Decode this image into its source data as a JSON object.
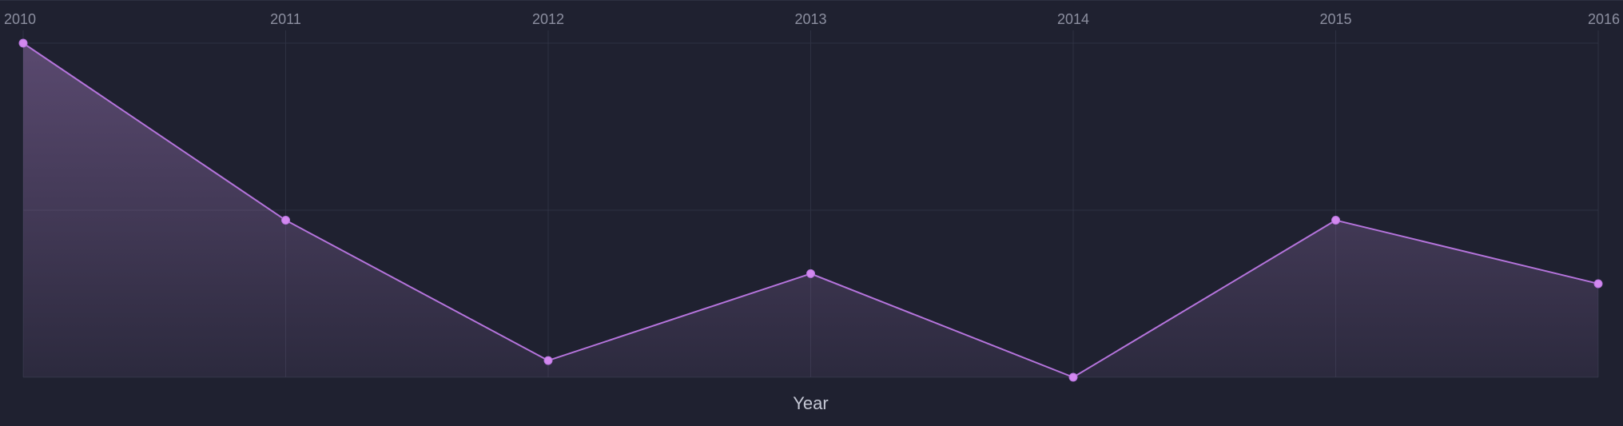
{
  "chart_data": {
    "type": "area",
    "xlabel": "Year",
    "ylabel": "",
    "x": [
      "2010",
      "2011",
      "2012",
      "2013",
      "2014",
      "2015",
      "2016"
    ],
    "series": [
      {
        "values": [
          100,
          47,
          5,
          31,
          0,
          47,
          28
        ]
      }
    ],
    "ylim": [
      0,
      100
    ],
    "grid": true,
    "legend": "none",
    "y_tick_labels_visible": false
  },
  "colors": {
    "background": "#1f2130",
    "line": "#b574dc",
    "marker": "#d388f0",
    "fill_top": "#8a6aa3",
    "grid": "#2e3142",
    "tick_text": "#8c8fa0",
    "axis_title_text": "#c4c7d4"
  }
}
